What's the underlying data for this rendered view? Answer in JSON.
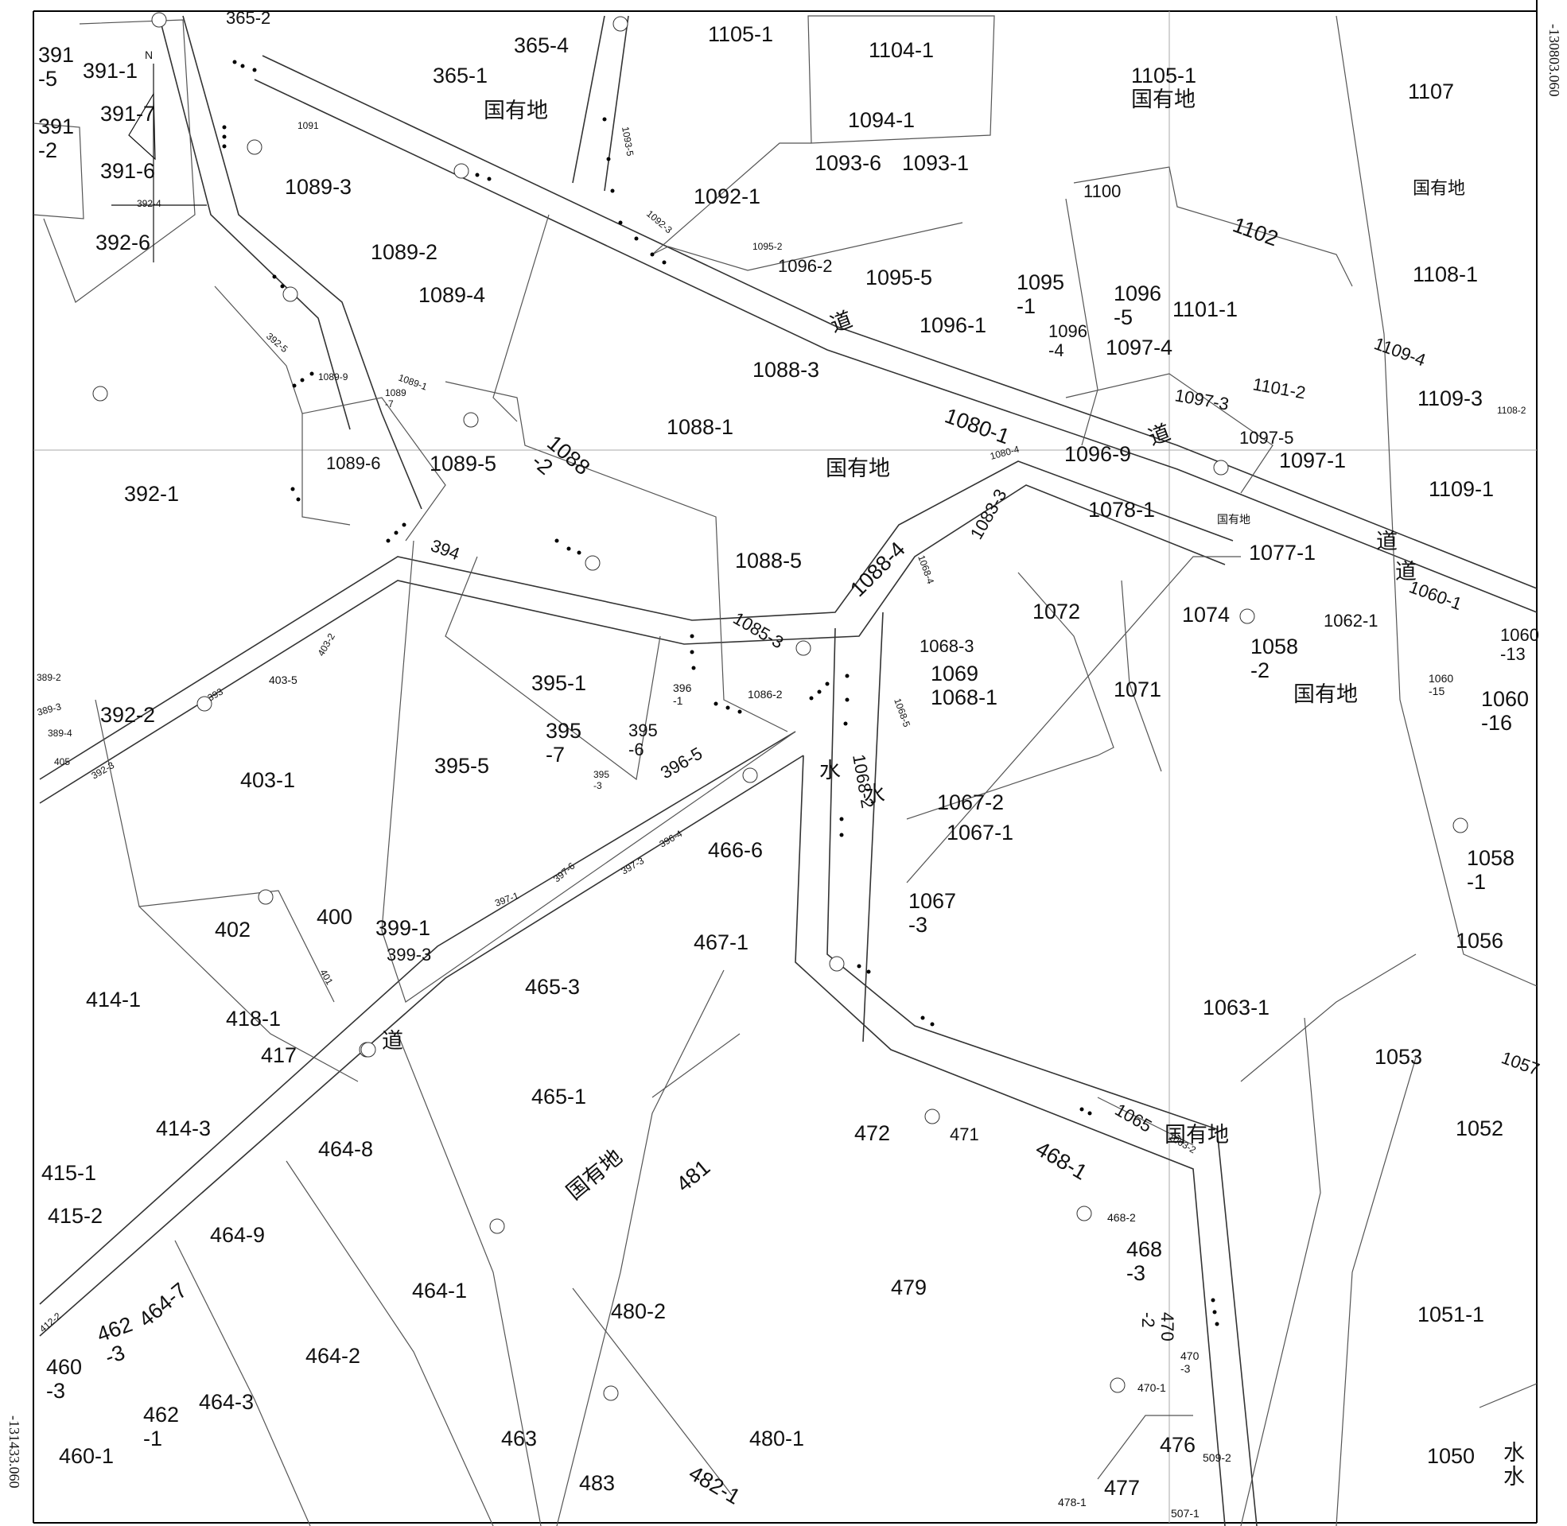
{
  "map": {
    "coord_right": "-130803.060",
    "coord_left": "-131433.060",
    "north_mark": "N",
    "labels": [
      {
        "id": "l1",
        "text": "391\n-5"
      },
      {
        "id": "l2",
        "text": "391-1"
      },
      {
        "id": "l3",
        "text": "391-7"
      },
      {
        "id": "l4",
        "text": "391\n-2"
      },
      {
        "id": "l5",
        "text": "391-6"
      },
      {
        "id": "l6",
        "text": "392-6"
      },
      {
        "id": "l7",
        "text": "365-2"
      },
      {
        "id": "l8",
        "text": "365-4"
      },
      {
        "id": "l9",
        "text": "365-1"
      },
      {
        "id": "l10",
        "text": "国有地"
      },
      {
        "id": "l11",
        "text": "1105-1"
      },
      {
        "id": "l12",
        "text": "1104-1"
      },
      {
        "id": "l13",
        "text": "1105-1\n国有地"
      },
      {
        "id": "l14",
        "text": "1107"
      },
      {
        "id": "l15",
        "text": "1094-1"
      },
      {
        "id": "l16",
        "text": "1093-6"
      },
      {
        "id": "l17",
        "text": "1093-1"
      },
      {
        "id": "l18",
        "text": "1092-1"
      },
      {
        "id": "l19",
        "text": "1089-3"
      },
      {
        "id": "l20",
        "text": "1089-2"
      },
      {
        "id": "l21",
        "text": "1089-4"
      },
      {
        "id": "l22",
        "text": "1100"
      },
      {
        "id": "l23",
        "text": "1102"
      },
      {
        "id": "l24",
        "text": "1108-1"
      },
      {
        "id": "l25",
        "text": "国有地"
      },
      {
        "id": "l26",
        "text": "1096-2"
      },
      {
        "id": "l27",
        "text": "1095-5"
      },
      {
        "id": "l28",
        "text": "1095\n-1"
      },
      {
        "id": "l29",
        "text": "1096\n-5"
      },
      {
        "id": "l30",
        "text": "1101-1"
      },
      {
        "id": "l31",
        "text": "1096-1"
      },
      {
        "id": "l32",
        "text": "1096\n-4"
      },
      {
        "id": "l33",
        "text": "1097-4"
      },
      {
        "id": "l34",
        "text": "1088-3"
      },
      {
        "id": "l35",
        "text": "道"
      },
      {
        "id": "l36",
        "text": "1109-4"
      },
      {
        "id": "l37",
        "text": "1101-2"
      },
      {
        "id": "l38",
        "text": "1097-3"
      },
      {
        "id": "l39",
        "text": "1109-3"
      },
      {
        "id": "l40",
        "text": "1088-1"
      },
      {
        "id": "l41",
        "text": "1080-1"
      },
      {
        "id": "l42",
        "text": "1096-9"
      },
      {
        "id": "l43",
        "text": "1097-5"
      },
      {
        "id": "l44",
        "text": "1097-1"
      },
      {
        "id": "l45",
        "text": "1109-1"
      },
      {
        "id": "l46",
        "text": "392-1"
      },
      {
        "id": "l47",
        "text": "1089-6"
      },
      {
        "id": "l48",
        "text": "1089-5"
      },
      {
        "id": "l49",
        "text": "1088\n-2"
      },
      {
        "id": "l50",
        "text": "国有地"
      },
      {
        "id": "l51",
        "text": "1078-1"
      },
      {
        "id": "l52",
        "text": "1077-1"
      },
      {
        "id": "l53",
        "text": "道"
      },
      {
        "id": "l54",
        "text": "1088-5"
      },
      {
        "id": "l55",
        "text": "1088-4"
      },
      {
        "id": "l56",
        "text": "1083-3"
      },
      {
        "id": "l57",
        "text": "1072"
      },
      {
        "id": "l58",
        "text": "1074"
      },
      {
        "id": "l59",
        "text": "1058\n-2"
      },
      {
        "id": "l60",
        "text": "1062-1"
      },
      {
        "id": "l61",
        "text": "1060-1"
      },
      {
        "id": "l62",
        "text": "1060\n-13"
      },
      {
        "id": "l63",
        "text": "394"
      },
      {
        "id": "l64",
        "text": "395-1"
      },
      {
        "id": "l65",
        "text": "1085-3"
      },
      {
        "id": "l66",
        "text": "1068-3"
      },
      {
        "id": "l67",
        "text": "1069\n1068-1"
      },
      {
        "id": "l68",
        "text": "1071"
      },
      {
        "id": "l69",
        "text": "国有地"
      },
      {
        "id": "l70",
        "text": "1060\n-16"
      },
      {
        "id": "l71",
        "text": "392-2"
      },
      {
        "id": "l72",
        "text": "403-1"
      },
      {
        "id": "l73",
        "text": "395\n-7"
      },
      {
        "id": "l74",
        "text": "395\n-6"
      },
      {
        "id": "l75",
        "text": "395-5"
      },
      {
        "id": "l76",
        "text": "396-5"
      },
      {
        "id": "l77",
        "text": "水"
      },
      {
        "id": "l78",
        "text": "1068-2"
      },
      {
        "id": "l79",
        "text": "水"
      },
      {
        "id": "l80",
        "text": "1067-2"
      },
      {
        "id": "l81",
        "text": "1067-1"
      },
      {
        "id": "l82",
        "text": "466-6"
      },
      {
        "id": "l83",
        "text": "1058\n-1"
      },
      {
        "id": "l84",
        "text": "402"
      },
      {
        "id": "l85",
        "text": "400"
      },
      {
        "id": "l86",
        "text": "399-1"
      },
      {
        "id": "l87",
        "text": "399-3"
      },
      {
        "id": "l88",
        "text": "467-1"
      },
      {
        "id": "l89",
        "text": "1067\n-3"
      },
      {
        "id": "l90",
        "text": "1056"
      },
      {
        "id": "l91",
        "text": "414-1"
      },
      {
        "id": "l92",
        "text": "418-1"
      },
      {
        "id": "l93",
        "text": "465-3"
      },
      {
        "id": "l94",
        "text": "1063-1"
      },
      {
        "id": "l95",
        "text": "417"
      },
      {
        "id": "l96",
        "text": "道"
      },
      {
        "id": "l97",
        "text": "1053"
      },
      {
        "id": "l98",
        "text": "1057"
      },
      {
        "id": "l99",
        "text": "465-1"
      },
      {
        "id": "l100",
        "text": "414-3"
      },
      {
        "id": "l101",
        "text": "464-8"
      },
      {
        "id": "l102",
        "text": "472"
      },
      {
        "id": "l103",
        "text": "471"
      },
      {
        "id": "l104",
        "text": "1065"
      },
      {
        "id": "l105",
        "text": "468-1"
      },
      {
        "id": "l106",
        "text": "1052"
      },
      {
        "id": "l107",
        "text": "415-1"
      },
      {
        "id": "l108",
        "text": "国有地"
      },
      {
        "id": "l109",
        "text": "481"
      },
      {
        "id": "l110",
        "text": "415-2"
      },
      {
        "id": "l111",
        "text": "464-9"
      },
      {
        "id": "l112",
        "text": "468-2"
      },
      {
        "id": "l113",
        "text": "468\n-3"
      },
      {
        "id": "l114",
        "text": "464-7"
      },
      {
        "id": "l115",
        "text": "464-1"
      },
      {
        "id": "l116",
        "text": "479"
      },
      {
        "id": "l117",
        "text": "480-2"
      },
      {
        "id": "l118",
        "text": "1051-1"
      },
      {
        "id": "l119",
        "text": "462\n-3"
      },
      {
        "id": "l120",
        "text": "470\n-2"
      },
      {
        "id": "l121",
        "text": "460\n-3"
      },
      {
        "id": "l122",
        "text": "464-2"
      },
      {
        "id": "l123",
        "text": "470\n-3"
      },
      {
        "id": "l124",
        "text": "462\n-1"
      },
      {
        "id": "l125",
        "text": "464-3"
      },
      {
        "id": "l126",
        "text": "470-1"
      },
      {
        "id": "l127",
        "text": "480-1"
      },
      {
        "id": "l128",
        "text": "476"
      },
      {
        "id": "l129",
        "text": "509-2"
      },
      {
        "id": "l130",
        "text": "1050"
      },
      {
        "id": "l131",
        "text": "水\n水"
      },
      {
        "id": "l132",
        "text": "460-1"
      },
      {
        "id": "l133",
        "text": "463"
      },
      {
        "id": "l134",
        "text": "477"
      },
      {
        "id": "l135",
        "text": "483"
      },
      {
        "id": "l136",
        "text": "482-1"
      },
      {
        "id": "l137",
        "text": "478-1"
      },
      {
        "id": "l138",
        "text": "507-1"
      },
      {
        "id": "l139",
        "text": "1108-2"
      },
      {
        "id": "l140",
        "text": "国有地"
      },
      {
        "id": "l141",
        "text": "1060\n-15"
      },
      {
        "id": "l142",
        "text": "1086-2"
      },
      {
        "id": "l143",
        "text": "396\n-1"
      },
      {
        "id": "l144",
        "text": "1068-4"
      },
      {
        "id": "l145",
        "text": "1068-5"
      },
      {
        "id": "l146",
        "text": "1080-4"
      },
      {
        "id": "l147",
        "text": "1092-3"
      },
      {
        "id": "l148",
        "text": "1093-5"
      },
      {
        "id": "l149",
        "text": "1095-2"
      },
      {
        "id": "l150",
        "text": "1091"
      },
      {
        "id": "l151",
        "text": "392-5"
      },
      {
        "id": "l152",
        "text": "1089-9"
      },
      {
        "id": "l153",
        "text": "1089-1"
      },
      {
        "id": "l154",
        "text": "1089\n-7"
      },
      {
        "id": "l155",
        "text": "392-4"
      },
      {
        "id": "l156",
        "text": "403-5"
      },
      {
        "id": "l157",
        "text": "403-2"
      },
      {
        "id": "l158",
        "text": "393"
      },
      {
        "id": "l159",
        "text": "389-2"
      },
      {
        "id": "l160",
        "text": "389-3"
      },
      {
        "id": "l161",
        "text": "389-4"
      },
      {
        "id": "l162",
        "text": "405"
      },
      {
        "id": "l163",
        "text": "392-3"
      },
      {
        "id": "l164",
        "text": "395\n-3"
      },
      {
        "id": "l165",
        "text": "397-6"
      },
      {
        "id": "l166",
        "text": "397-3"
      },
      {
        "id": "l167",
        "text": "396-4"
      },
      {
        "id": "l168",
        "text": "397-1"
      },
      {
        "id": "l169",
        "text": "401"
      },
      {
        "id": "l170",
        "text": "412-2"
      },
      {
        "id": "l171",
        "text": "1063-2"
      },
      {
        "id": "l172",
        "text": "道"
      },
      {
        "id": "l173",
        "text": "国有地"
      },
      {
        "id": "l174",
        "text": "道"
      }
    ]
  }
}
